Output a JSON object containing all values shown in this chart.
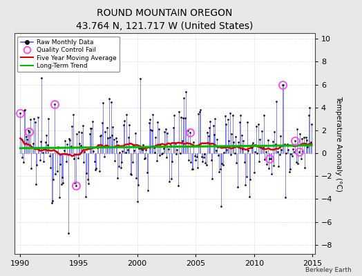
{
  "title": "ROUND MOUNTAIN OREGON",
  "subtitle": "43.764 N, 121.717 W (United States)",
  "ylabel": "Temperature Anomaly (°C)",
  "attribution": "Berkeley Earth",
  "xlim": [
    1989.5,
    2015.2
  ],
  "ylim": [
    -8.8,
    10.5
  ],
  "yticks": [
    -8,
    -6,
    -4,
    -2,
    0,
    2,
    4,
    6,
    8,
    10
  ],
  "xticks": [
    1990,
    1995,
    2000,
    2005,
    2010,
    2015
  ],
  "bg_color": "#e8e8e8",
  "plot_bg_color": "#ffffff",
  "raw_line_color": "#5555ff",
  "raw_marker_color": "#111111",
  "moving_avg_color": "#dd0000",
  "trend_color": "#00bb00",
  "qc_fail_color": "#ff44ff",
  "title_fontsize": 10,
  "subtitle_fontsize": 8,
  "tick_labelsize": 8,
  "ylabel_fontsize": 7.5
}
